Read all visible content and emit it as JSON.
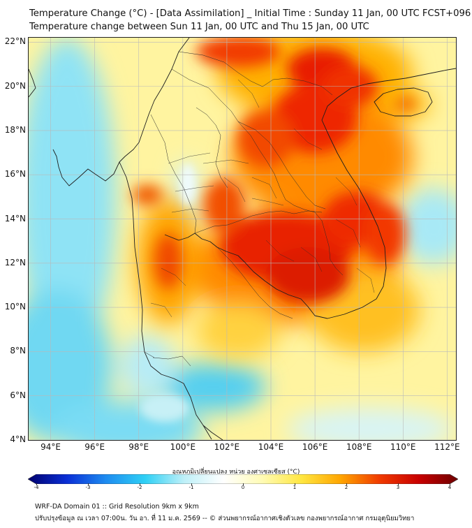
{
  "header": {
    "title_line1": "Temperature Change (°C) - [Data Assimilation] _ Initial Time : Sunday 11 Jan, 00 UTC FCST+096",
    "title_line2": "Temperature change between Sun 11 Jan, 00 UTC and Thu 15 Jan, 00 UTC"
  },
  "map": {
    "lat_labels": [
      "22°N",
      "20°N",
      "18°N",
      "16°N",
      "14°N",
      "12°N",
      "10°N",
      "8°N",
      "6°N",
      "4°N"
    ],
    "lon_labels": [
      "94°E",
      "96°E",
      "98°E",
      "100°E",
      "102°E",
      "104°E",
      "106°E",
      "108°E",
      "110°E",
      "112°E"
    ],
    "lat_range": [
      4,
      22.2
    ],
    "lon_range": [
      93,
      112.4
    ]
  },
  "colorbar": {
    "label": "อุณหภูมิเปลี่ยนแปลง หน่วย องศาเซลเซียส (°C)",
    "ticks": [
      "-4",
      "-3",
      "-2",
      "-1",
      "0",
      "1",
      "2",
      "3",
      "4"
    ],
    "range": [
      -4,
      4
    ],
    "colors": [
      "#00006e",
      "#0a2fd6",
      "#1e8cf0",
      "#2fd0f5",
      "#bff0f8",
      "#ffffff",
      "#fffbb4",
      "#ffe640",
      "#ffa500",
      "#f03a00",
      "#c80000",
      "#6e0000"
    ]
  },
  "footer": {
    "line1": "WRF-DA Domain 01 :: Grid Resolution 9km x 9km",
    "line2": "ปรับปรุงข้อมูล ณ เวลา 07:00น. วัน อา. ที่ 11 ม.ค. 2569 -- © ส่วนพยากรณ์อากาศเชิงตัวเลข กองพยากรณ์อากาศ กรมอุตุนิยมวิทยา"
  }
}
